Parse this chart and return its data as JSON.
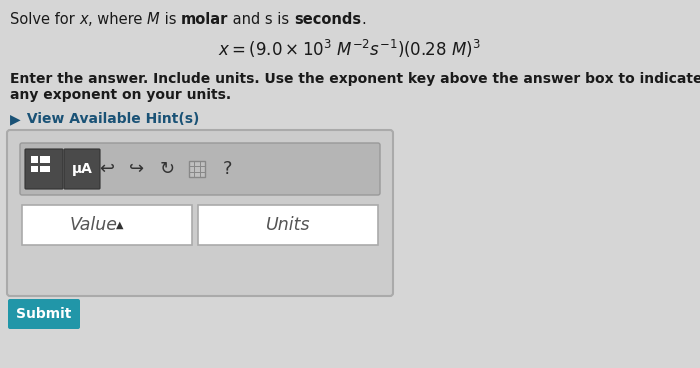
{
  "bg_color": "#d6d6d6",
  "title_parts": [
    {
      "text": "Solve for ",
      "style": "normal",
      "weight": "normal"
    },
    {
      "text": "x",
      "style": "italic",
      "weight": "normal"
    },
    {
      "text": ", where ",
      "style": "normal",
      "weight": "normal"
    },
    {
      "text": "M",
      "style": "italic",
      "weight": "normal"
    },
    {
      "text": " is ",
      "style": "normal",
      "weight": "normal"
    },
    {
      "text": "molar",
      "style": "normal",
      "weight": "bold"
    },
    {
      "text": " and s is ",
      "style": "normal",
      "weight": "normal"
    },
    {
      "text": "seconds",
      "style": "normal",
      "weight": "bold"
    },
    {
      "text": ".",
      "style": "normal",
      "weight": "normal"
    }
  ],
  "equation": "$x = (9.0 \\times 10^3\\ M^{-2}s^{-1})(0.28\\ M)^3$",
  "instr1": "Enter the answer. Include units. Use the exponent key above the answer box to indicate",
  "instr2": "any exponent on your units.",
  "hint_arrow": "▶",
  "hint_text": " View Available Hint(s)",
  "value_text": "Value",
  "units_text": "Units",
  "submit_text": "Submit",
  "submit_bg": "#2196a8",
  "text_color": "#1a1a1a",
  "hint_color": "#1a5276",
  "box_bg": "#c8c8c8",
  "box_border": "#aaaaaa",
  "toolbar_bg": "#b0b0b0",
  "btn_dark_bg": "#555555",
  "input_bg": "#ffffff",
  "input_border": "#999999"
}
